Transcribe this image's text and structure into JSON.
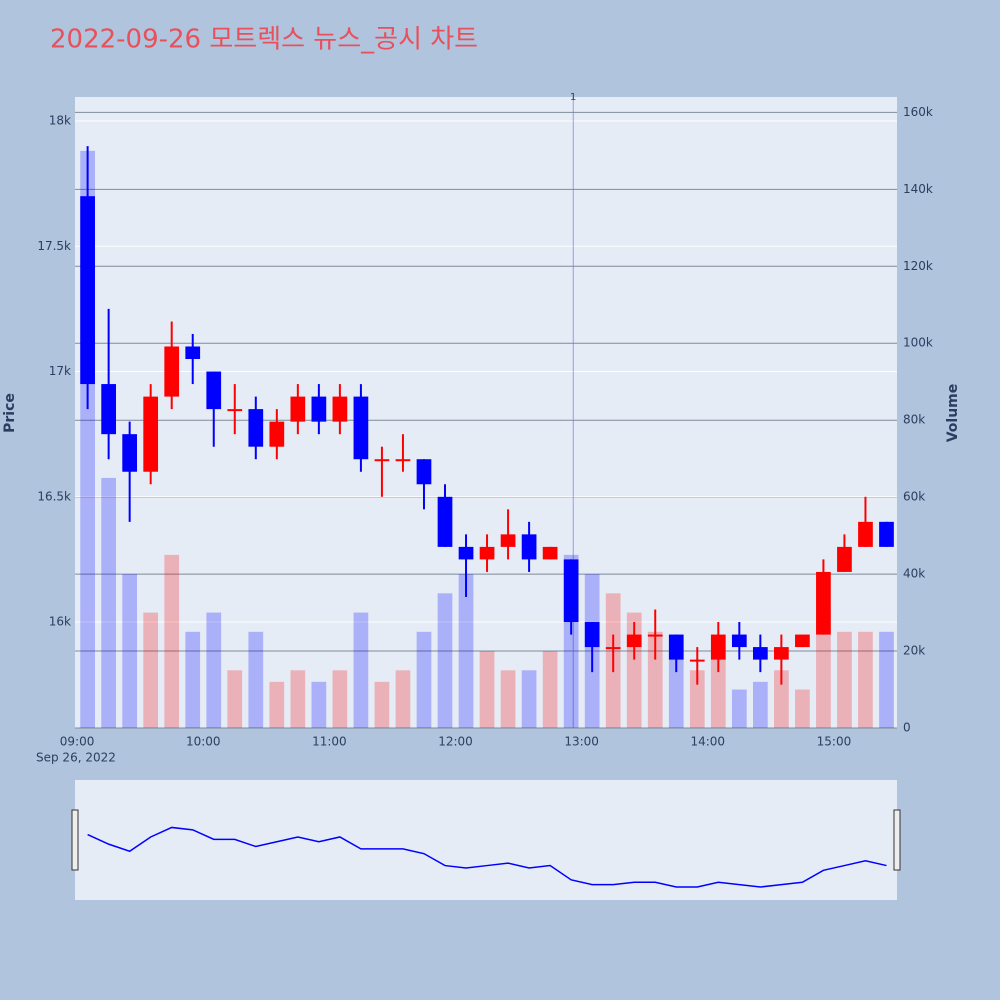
{
  "chart_data": {
    "type": "candlestick",
    "title": "2022-09-26 모트렉스 뉴스_공시 차트",
    "ylabel": "Price",
    "y2label": "Volume",
    "x_date_label": "Sep 26, 2022",
    "x": [
      "2022-09-26 09:05",
      "2022-09-26 09:15",
      "2022-09-26 09:25",
      "2022-09-26 09:35",
      "2022-09-26 09:45",
      "2022-09-26 09:55",
      "2022-09-26 10:05",
      "2022-09-26 10:15",
      "2022-09-26 10:25",
      "2022-09-26 10:35",
      "2022-09-26 10:45",
      "2022-09-26 10:55",
      "2022-09-26 11:05",
      "2022-09-26 11:15",
      "2022-09-26 11:25",
      "2022-09-26 11:35",
      "2022-09-26 11:45",
      "2022-09-26 11:55",
      "2022-09-26 12:05",
      "2022-09-26 12:15",
      "2022-09-26 12:25",
      "2022-09-26 12:35",
      "2022-09-26 12:45",
      "2022-09-26 12:55",
      "2022-09-26 13:05",
      "2022-09-26 13:15",
      "2022-09-26 13:25",
      "2022-09-26 13:35",
      "2022-09-26 13:45",
      "2022-09-26 13:55",
      "2022-09-26 14:05",
      "2022-09-26 14:15",
      "2022-09-26 14:25",
      "2022-09-26 14:35",
      "2022-09-26 14:45",
      "2022-09-26 14:55",
      "2022-09-26 15:05",
      "2022-09-26 15:15",
      "2022-09-26 15:25"
    ],
    "open": [
      17700,
      16950,
      16750,
      16600,
      16900,
      17100,
      17000,
      16850,
      16850,
      16700,
      16800,
      16900,
      16800,
      16900,
      16650,
      16650,
      16650,
      16500,
      16300,
      16250,
      16300,
      16350,
      16250,
      16250,
      16000,
      15900,
      15900,
      15950,
      15950,
      15850,
      15850,
      15950,
      15900,
      15850,
      15900,
      15950,
      16200,
      16300,
      16400
    ],
    "high": [
      17900,
      17250,
      16800,
      16950,
      17200,
      17150,
      17000,
      16950,
      16900,
      16850,
      16950,
      16950,
      16950,
      16950,
      16700,
      16750,
      16650,
      16550,
      16350,
      16350,
      16450,
      16400,
      16300,
      16250,
      16000,
      15950,
      16000,
      16050,
      15950,
      15900,
      16000,
      16000,
      15950,
      15950,
      15950,
      16250,
      16350,
      16500,
      16400
    ],
    "low": [
      16850,
      16650,
      16400,
      16550,
      16850,
      16950,
      16700,
      16750,
      16650,
      16650,
      16750,
      16750,
      16750,
      16600,
      16500,
      16600,
      16450,
      16300,
      16100,
      16200,
      16250,
      16200,
      16250,
      15950,
      15800,
      15800,
      15850,
      15850,
      15800,
      15750,
      15800,
      15850,
      15800,
      15750,
      15900,
      15950,
      16200,
      16300,
      16300
    ],
    "close": [
      16950,
      16750,
      16600,
      16900,
      17100,
      17050,
      16850,
      16850,
      16700,
      16800,
      16900,
      16800,
      16900,
      16650,
      16650,
      16650,
      16550,
      16300,
      16250,
      16300,
      16350,
      16250,
      16300,
      16000,
      15900,
      15900,
      15950,
      15950,
      15850,
      15850,
      15950,
      15900,
      15850,
      15900,
      15950,
      16200,
      16300,
      16400,
      16300
    ],
    "volume": [
      150000,
      65000,
      40000,
      30000,
      45000,
      25000,
      30000,
      15000,
      25000,
      12000,
      15000,
      12000,
      15000,
      30000,
      12000,
      15000,
      25000,
      35000,
      40000,
      20000,
      15000,
      15000,
      20000,
      45000,
      40000,
      35000,
      30000,
      25000,
      20000,
      15000,
      20000,
      10000,
      12000,
      15000,
      10000,
      30000,
      25000,
      25000,
      25000
    ],
    "increasing_color": "#ff0000",
    "decreasing_color": "#0000ff",
    "xlim": [
      "2022-09-26 08:59",
      "2022-09-26 15:30"
    ],
    "xticks": [
      {
        "value": "2022-09-26 09:00",
        "label": "09:00"
      },
      {
        "value": "2022-09-26 10:00",
        "label": "10:00"
      },
      {
        "value": "2022-09-26 11:00",
        "label": "11:00"
      },
      {
        "value": "2022-09-26 12:00",
        "label": "12:00"
      },
      {
        "value": "2022-09-26 13:00",
        "label": "13:00"
      },
      {
        "value": "2022-09-26 14:00",
        "label": "14:00"
      },
      {
        "value": "2022-09-26 15:00",
        "label": "15:00"
      }
    ],
    "ylim": [
      15577,
      18096
    ],
    "yticks": [
      {
        "value": 16000,
        "label": "16k"
      },
      {
        "value": 16500,
        "label": "16.5k"
      },
      {
        "value": 17000,
        "label": "17k"
      },
      {
        "value": 17500,
        "label": "17.5k"
      },
      {
        "value": 18000,
        "label": "18k"
      }
    ],
    "y2lim": [
      0,
      164000
    ],
    "y2ticks": [
      0,
      {
        "value": 20000,
        "label": "20k"
      },
      {
        "value": 40000,
        "label": "40k"
      },
      {
        "value": 60000,
        "label": "60k"
      },
      {
        "value": 80000,
        "label": "80k"
      },
      {
        "value": 100000,
        "label": "100k"
      },
      {
        "value": 120000,
        "label": "120k"
      },
      {
        "value": 140000,
        "label": "140k"
      },
      {
        "value": 160000,
        "label": "160k"
      }
    ],
    "annotations": [
      {
        "x": "2022-09-26 12:56",
        "text": "1"
      }
    ],
    "grid": true
  }
}
